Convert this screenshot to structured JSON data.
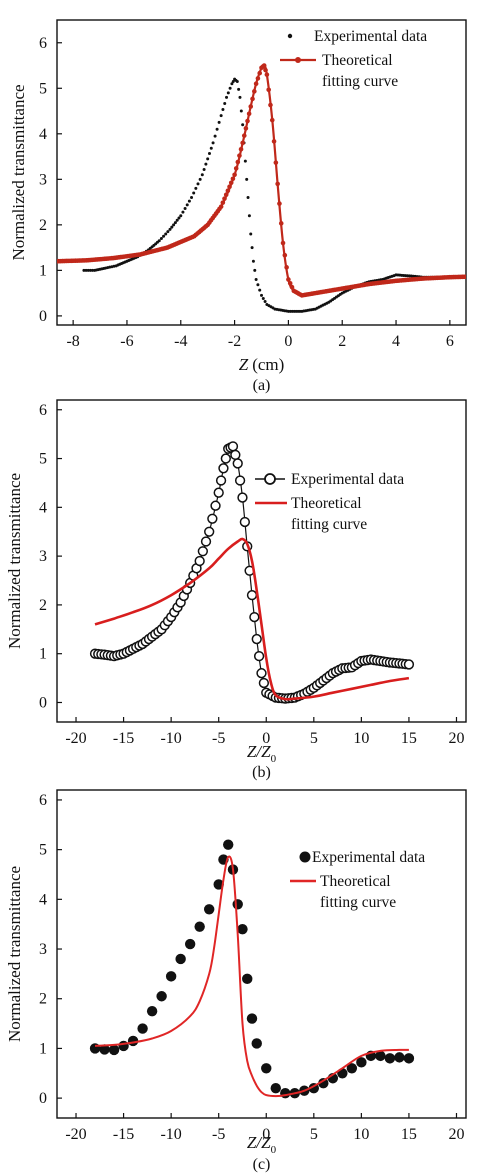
{
  "chart_data": [
    {
      "panel": "(a)",
      "type": "scatter",
      "caption": "(a)",
      "ylabel": "Normalized transmittance",
      "xlabel": "Z",
      "xlabel_unit": "(cm)",
      "xlim": [
        -8.6,
        6.6
      ],
      "ylim": [
        -0.2,
        6.5
      ],
      "xticks": [
        "-8",
        "-6",
        "-4",
        "-2",
        "0",
        "2",
        "4",
        "6"
      ],
      "yticks": [
        "0",
        "1",
        "2",
        "3",
        "4",
        "5",
        "6"
      ],
      "legend_position": "top-right",
      "series": [
        {
          "name": "Experimental data",
          "style": "small-dots",
          "color": "#111111",
          "x": [
            -7.6,
            -7.2,
            -6.8,
            -6.4,
            -6.0,
            -5.6,
            -5.2,
            -4.8,
            -4.4,
            -4.0,
            -3.6,
            -3.2,
            -2.8,
            -2.5,
            -2.3,
            -2.1,
            -2.0,
            -1.9,
            -1.8,
            -1.7,
            -1.6,
            -1.5,
            -1.4,
            -1.3,
            -1.2,
            -1.0,
            -0.8,
            -0.5,
            0.0,
            0.5,
            1.0,
            1.5,
            2.0,
            2.5,
            3.0,
            3.5,
            4.0,
            4.5,
            5.0,
            5.5,
            6.0,
            6.5
          ],
          "y": [
            1.0,
            1.0,
            1.05,
            1.1,
            1.2,
            1.3,
            1.45,
            1.65,
            1.9,
            2.2,
            2.6,
            3.1,
            3.8,
            4.4,
            4.8,
            5.1,
            5.2,
            5.15,
            4.8,
            4.2,
            3.4,
            2.6,
            1.8,
            1.2,
            0.8,
            0.45,
            0.25,
            0.15,
            0.1,
            0.1,
            0.15,
            0.3,
            0.5,
            0.65,
            0.75,
            0.8,
            0.9,
            0.88,
            0.85,
            0.85,
            0.85,
            0.85
          ]
        },
        {
          "name": "Theoretical fitting curve",
          "style": "line-markers",
          "color": "#c0281a",
          "x": [
            -8.6,
            -7.5,
            -6.5,
            -5.5,
            -4.5,
            -3.5,
            -3.0,
            -2.5,
            -2.0,
            -1.7,
            -1.4,
            -1.2,
            -1.0,
            -0.9,
            -0.8,
            -0.6,
            -0.4,
            -0.2,
            0.0,
            0.2,
            0.5,
            1.0,
            2.0,
            3.0,
            4.0,
            5.0,
            6.0,
            6.6
          ],
          "y": [
            1.2,
            1.22,
            1.27,
            1.35,
            1.5,
            1.75,
            2.0,
            2.4,
            3.1,
            3.8,
            4.6,
            5.1,
            5.45,
            5.5,
            5.3,
            4.3,
            2.9,
            1.6,
            0.8,
            0.55,
            0.45,
            0.5,
            0.6,
            0.7,
            0.77,
            0.82,
            0.85,
            0.86
          ]
        }
      ]
    },
    {
      "panel": "(b)",
      "type": "scatter",
      "caption": "(b)",
      "ylabel": "Normalized transmittance",
      "xlabel": "Z/Z",
      "xlabel_sub": "0",
      "xlim": [
        -22,
        21
      ],
      "ylim": [
        -0.4,
        6.2
      ],
      "xticks": [
        "-20",
        "-15",
        "-10",
        "-5",
        "0",
        "5",
        "10",
        "15",
        "20"
      ],
      "yticks": [
        "0",
        "1",
        "2",
        "3",
        "4",
        "5",
        "6"
      ],
      "legend_position": "top-right",
      "series": [
        {
          "name": "Experimental data",
          "style": "open-circles-line",
          "color": "#111111",
          "x": [
            -18,
            -17,
            -16,
            -15,
            -14,
            -13,
            -12,
            -11,
            -10,
            -9,
            -8,
            -7,
            -6,
            -5,
            -4.5,
            -4,
            -3.5,
            -3,
            -2.5,
            -2,
            -1.5,
            -1,
            -0.5,
            0,
            1,
            2,
            3,
            4,
            5,
            6,
            7,
            8,
            9,
            10,
            11,
            12,
            13,
            14,
            15
          ],
          "y": [
            1.0,
            0.98,
            0.95,
            1.0,
            1.1,
            1.2,
            1.35,
            1.5,
            1.75,
            2.05,
            2.45,
            2.9,
            3.5,
            4.3,
            4.8,
            5.2,
            5.25,
            4.9,
            4.2,
            3.2,
            2.2,
            1.3,
            0.6,
            0.2,
            0.1,
            0.08,
            0.1,
            0.18,
            0.3,
            0.45,
            0.6,
            0.7,
            0.72,
            0.85,
            0.88,
            0.85,
            0.82,
            0.8,
            0.78
          ]
        },
        {
          "name": "Theoretical fitting curve",
          "style": "line",
          "color": "#d81e1e",
          "x": [
            -18,
            -16,
            -14,
            -12,
            -10,
            -8,
            -6,
            -5,
            -4,
            -3,
            -2.5,
            -2,
            -1.5,
            -1,
            -0.5,
            0,
            0.5,
            1,
            2,
            3,
            5,
            7,
            9,
            11,
            13,
            15
          ],
          "y": [
            1.6,
            1.72,
            1.85,
            2.0,
            2.2,
            2.45,
            2.75,
            2.95,
            3.15,
            3.3,
            3.35,
            3.25,
            2.9,
            2.3,
            1.6,
            0.9,
            0.4,
            0.15,
            0.07,
            0.08,
            0.12,
            0.2,
            0.28,
            0.36,
            0.44,
            0.5
          ]
        }
      ]
    },
    {
      "panel": "(c)",
      "type": "scatter",
      "caption": "(c)",
      "ylabel": "Normalized transmittance",
      "xlabel": "Z/Z",
      "xlabel_sub": "0",
      "xlim": [
        -22,
        21
      ],
      "ylim": [
        -0.4,
        6.2
      ],
      "xticks": [
        "-20",
        "-15",
        "-10",
        "-5",
        "0",
        "5",
        "10",
        "15",
        "20"
      ],
      "yticks": [
        "0",
        "1",
        "2",
        "3",
        "4",
        "5",
        "6"
      ],
      "legend_position": "top-right",
      "series": [
        {
          "name": "Experimental data",
          "style": "filled-circles",
          "color": "#111111",
          "x": [
            -18,
            -17,
            -16,
            -15,
            -14,
            -13,
            -12,
            -11,
            -10,
            -9,
            -8,
            -7,
            -6,
            -5,
            -4.5,
            -4,
            -3.5,
            -3,
            -2.5,
            -2,
            -1.5,
            -1,
            0,
            1,
            2,
            3,
            4,
            5,
            6,
            7,
            8,
            9,
            10,
            11,
            12,
            13,
            14,
            15
          ],
          "y": [
            1.0,
            0.98,
            0.97,
            1.05,
            1.15,
            1.4,
            1.75,
            2.05,
            2.45,
            2.8,
            3.1,
            3.45,
            3.8,
            4.3,
            4.8,
            5.1,
            4.6,
            3.9,
            3.4,
            2.4,
            1.6,
            1.1,
            0.6,
            0.2,
            0.1,
            0.1,
            0.15,
            0.2,
            0.3,
            0.4,
            0.5,
            0.6,
            0.72,
            0.85,
            0.85,
            0.8,
            0.82,
            0.8
          ]
        },
        {
          "name": "Theoretical fitting curve",
          "style": "line",
          "color": "#e02626",
          "x": [
            -18,
            -16,
            -14,
            -12,
            -10,
            -8,
            -7,
            -6,
            -5.5,
            -5,
            -4.5,
            -4,
            -3.5,
            -3,
            -2.5,
            -2,
            -1.5,
            -1,
            -0.5,
            0,
            1,
            2,
            4,
            6,
            8,
            10,
            12,
            14,
            15
          ],
          "y": [
            1.05,
            1.07,
            1.12,
            1.2,
            1.35,
            1.65,
            1.95,
            2.5,
            3.0,
            3.7,
            4.4,
            4.85,
            4.6,
            3.3,
            1.5,
            0.75,
            0.45,
            0.25,
            0.12,
            0.06,
            0.04,
            0.06,
            0.15,
            0.35,
            0.6,
            0.85,
            0.95,
            0.97,
            0.97
          ]
        }
      ]
    }
  ]
}
